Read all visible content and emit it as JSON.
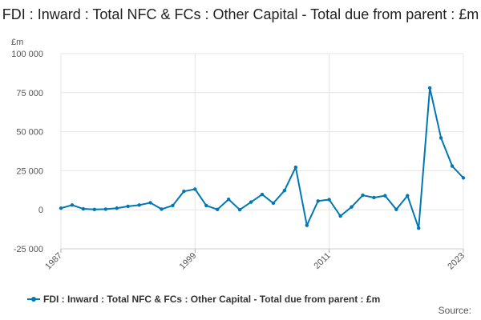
{
  "chart_data": {
    "type": "line",
    "title": "FDI : Inward : Total NFC & FCs : Other Capital - Total due from parent : £m",
    "ylabel": "£m",
    "xlabel": "",
    "ylim": [
      -25000,
      100000
    ],
    "yticks": [
      -25000,
      0,
      25000,
      50000,
      75000,
      100000
    ],
    "ytick_labels": [
      "-25 000",
      "0",
      "25 000",
      "50 000",
      "75 000",
      "100 000"
    ],
    "xlim": [
      1987,
      2023
    ],
    "xticks": [
      1987,
      1999,
      2011,
      2023
    ],
    "xtick_labels": [
      "1987",
      "1999",
      "2011",
      "2023"
    ],
    "grid": true,
    "legend_position": "bottom-left",
    "series": [
      {
        "name": "FDI : Inward : Total NFC & FCs : Other Capital - Total due from parent : £m",
        "color": "#0077b6",
        "x": [
          1987,
          1988,
          1989,
          1990,
          1991,
          1992,
          1993,
          1994,
          1995,
          1996,
          1997,
          1998,
          1999,
          2000,
          2001,
          2002,
          2003,
          2004,
          2005,
          2006,
          2007,
          2008,
          2009,
          2010,
          2011,
          2012,
          2013,
          2014,
          2015,
          2016,
          2017,
          2018,
          2019,
          2020,
          2021,
          2022,
          2023
        ],
        "values": [
          1000,
          3000,
          600,
          200,
          400,
          1000,
          2200,
          3000,
          4500,
          400,
          2700,
          11800,
          13200,
          2700,
          200,
          6700,
          0,
          4900,
          9800,
          4200,
          12300,
          27200,
          -10000,
          5600,
          6500,
          -4000,
          1800,
          9300,
          7800,
          9000,
          200,
          9000,
          -11800,
          78000,
          46000,
          28000,
          20400
        ]
      }
    ]
  },
  "legend": {
    "label": "FDI : Inward : Total NFC & FCs : Other Capital - Total due from parent : £m"
  },
  "source": {
    "label": "Source:"
  }
}
